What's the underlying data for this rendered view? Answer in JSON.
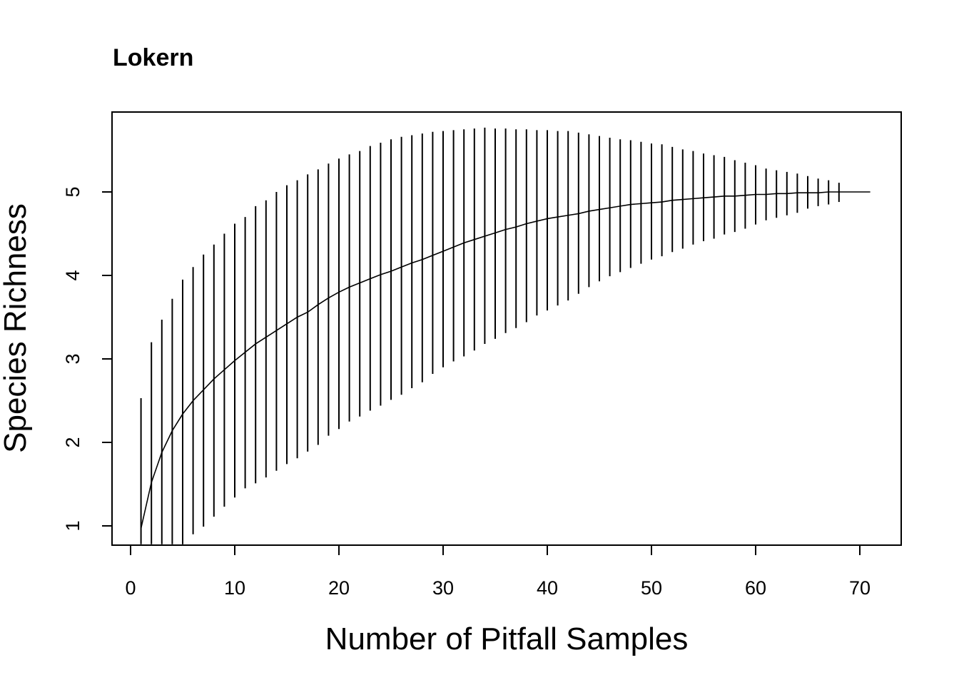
{
  "chart_data": {
    "type": "line",
    "title": "Lokern",
    "xlabel": "Number of Pitfall Samples",
    "ylabel": "Species Richness",
    "xlim": [
      0,
      71
    ],
    "ylim": [
      0.78,
      5.95
    ],
    "xticks": [
      0,
      10,
      20,
      30,
      40,
      50,
      60,
      70
    ],
    "yticks": [
      1,
      2,
      3,
      4,
      5
    ],
    "grid": false,
    "legend": "none",
    "series": [
      {
        "x": [
          1,
          2,
          3,
          4,
          5,
          6,
          7,
          8,
          9,
          10,
          11,
          12,
          13,
          14,
          15,
          16,
          17,
          18,
          19,
          20,
          21,
          22,
          23,
          24,
          25,
          26,
          27,
          28,
          29,
          30,
          31,
          32,
          33,
          34,
          35,
          36,
          37,
          38,
          39,
          40,
          41,
          42,
          43,
          44,
          45,
          46,
          47,
          48,
          49,
          50,
          51,
          52,
          53,
          54,
          55,
          56,
          57,
          58,
          59,
          60,
          61,
          62,
          63,
          64,
          65,
          66,
          67,
          68,
          69,
          70,
          71
        ],
        "mean": [
          0.97,
          1.52,
          1.88,
          2.14,
          2.34,
          2.5,
          2.63,
          2.76,
          2.87,
          2.98,
          3.08,
          3.18,
          3.26,
          3.34,
          3.42,
          3.5,
          3.56,
          3.65,
          3.73,
          3.8,
          3.86,
          3.91,
          3.96,
          4.01,
          4.05,
          4.1,
          4.15,
          4.19,
          4.24,
          4.29,
          4.34,
          4.39,
          4.43,
          4.47,
          4.51,
          4.55,
          4.58,
          4.62,
          4.65,
          4.68,
          4.7,
          4.72,
          4.74,
          4.77,
          4.79,
          4.81,
          4.83,
          4.85,
          4.86,
          4.87,
          4.88,
          4.9,
          4.91,
          4.92,
          4.93,
          4.94,
          4.95,
          4.95,
          4.96,
          4.97,
          4.97,
          4.98,
          4.98,
          4.99,
          4.99,
          4.99,
          5.0,
          5.0,
          5.0,
          5.0,
          5.0
        ],
        "upper": [
          2.53,
          3.2,
          3.47,
          3.72,
          3.95,
          4.1,
          4.25,
          4.37,
          4.5,
          4.62,
          4.7,
          4.83,
          4.9,
          5.0,
          5.08,
          5.14,
          5.21,
          5.27,
          5.34,
          5.4,
          5.45,
          5.49,
          5.55,
          5.59,
          5.63,
          5.66,
          5.68,
          5.7,
          5.72,
          5.73,
          5.74,
          5.75,
          5.76,
          5.77,
          5.76,
          5.76,
          5.75,
          5.75,
          5.74,
          5.74,
          5.73,
          5.73,
          5.71,
          5.69,
          5.67,
          5.65,
          5.63,
          5.62,
          5.6,
          5.58,
          5.57,
          5.54,
          5.51,
          5.49,
          5.46,
          5.44,
          5.42,
          5.38,
          5.35,
          5.32,
          5.28,
          5.26,
          5.24,
          5.22,
          5.19,
          5.16,
          5.14,
          5.11,
          null,
          null,
          null
        ],
        "lower": [
          0.78,
          0.78,
          0.78,
          0.78,
          0.78,
          0.9,
          0.99,
          1.11,
          1.23,
          1.34,
          1.45,
          1.51,
          1.58,
          1.66,
          1.74,
          1.81,
          1.89,
          1.97,
          2.08,
          2.16,
          2.25,
          2.31,
          2.38,
          2.44,
          2.51,
          2.57,
          2.65,
          2.72,
          2.82,
          2.9,
          2.97,
          3.03,
          3.1,
          3.18,
          3.24,
          3.31,
          3.37,
          3.44,
          3.52,
          3.58,
          3.64,
          3.7,
          3.78,
          3.86,
          3.93,
          3.99,
          4.04,
          4.09,
          4.14,
          4.19,
          4.23,
          4.28,
          4.32,
          4.37,
          4.41,
          4.44,
          4.49,
          4.52,
          4.56,
          4.61,
          4.66,
          4.69,
          4.72,
          4.75,
          4.8,
          4.83,
          4.85,
          4.88,
          null,
          null,
          null
        ]
      }
    ]
  }
}
